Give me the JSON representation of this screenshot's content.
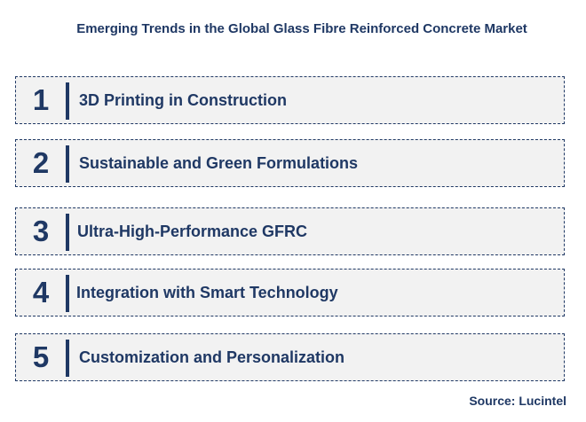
{
  "title": "Emerging Trends in the Global Glass Fibre Reinforced Concrete Market",
  "trends": [
    {
      "number": "1",
      "label": "3D Printing in Construction"
    },
    {
      "number": "2",
      "label": "Sustainable and Green Formulations"
    },
    {
      "number": "3",
      "label": "Ultra-High-Performance GFRC"
    },
    {
      "number": "4",
      "label": "Integration with Smart Technology"
    },
    {
      "number": "5",
      "label": "Customization and Personalization"
    }
  ],
  "source": "Source: Lucintel",
  "colors": {
    "text": "#1f3864",
    "box_fill": "#f2f2f2",
    "border": "#1f3864"
  }
}
